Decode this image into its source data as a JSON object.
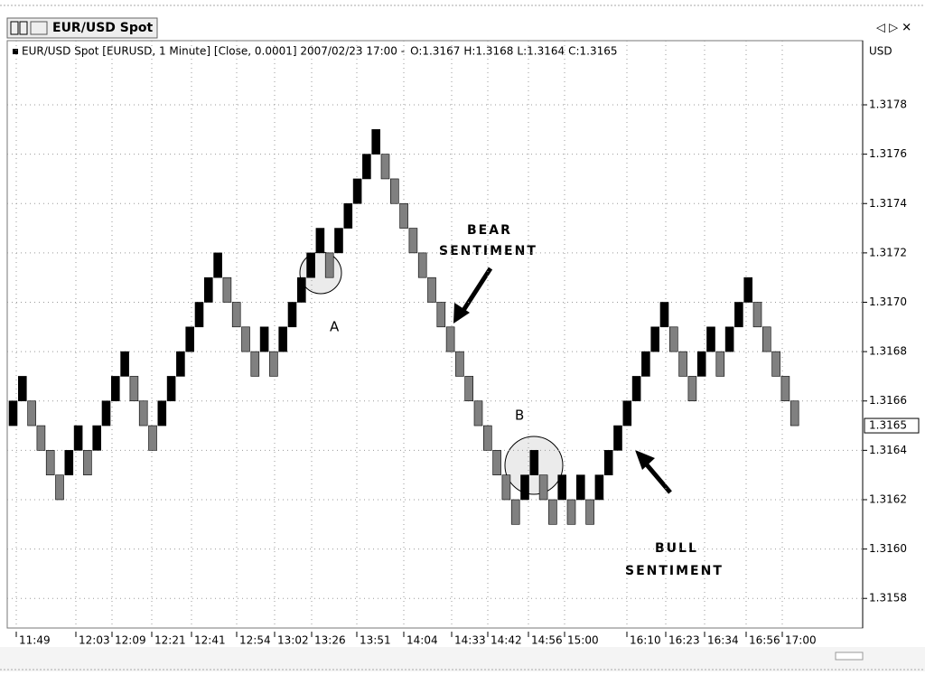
{
  "window_title": "EUR/USD Spot",
  "chart_data": {
    "type": "renko",
    "title": "EUR/USD Spot [EURUSD, 1 Minute] [Close, 0.0001] 2007/02/23 17:00 -",
    "ohlc": [
      "O:1.3167",
      "H:1.3168",
      "L:1.3164",
      "C:1.3165"
    ],
    "y_axis_label": "USD",
    "up_color": "#000000",
    "down_color": "#808080",
    "open": [
      1.3165,
      1.3166,
      1.3166,
      1.3165,
      1.3164,
      1.3163,
      1.3163,
      1.3164,
      1.3164,
      1.3164,
      1.3165,
      1.3166,
      1.3167,
      1.3167,
      1.3166,
      1.3165,
      1.3165,
      1.3166,
      1.3167,
      1.3168,
      1.3169,
      1.317,
      1.3171,
      1.3171,
      1.317,
      1.3169,
      1.3168,
      1.3168,
      1.3168,
      1.3168,
      1.3169,
      1.317,
      1.3171,
      1.3172,
      1.3172,
      1.3172,
      1.3173,
      1.3174,
      1.3175,
      1.3176,
      1.3176,
      1.3175,
      1.3174,
      1.3173,
      1.3172,
      1.3171,
      1.317,
      1.3169,
      1.3168,
      1.3167,
      1.3166,
      1.3165,
      1.3164,
      1.3163,
      1.3162,
      1.3162,
      1.3163,
      1.3163,
      1.3162,
      1.3162,
      1.3162,
      1.3162,
      1.3162,
      1.3162,
      1.3163,
      1.3164,
      1.3165,
      1.3166,
      1.3167,
      1.3168,
      1.3169,
      1.3169,
      1.3168,
      1.3167,
      1.3167,
      1.3168,
      1.3168,
      1.3168,
      1.3169,
      1.317,
      1.317,
      1.3169,
      1.3168,
      1.3167,
      1.3166
    ],
    "close": [
      1.3166,
      1.3167,
      1.3165,
      1.3164,
      1.3163,
      1.3162,
      1.3164,
      1.3165,
      1.3163,
      1.3165,
      1.3166,
      1.3167,
      1.3168,
      1.3166,
      1.3165,
      1.3164,
      1.3166,
      1.3167,
      1.3168,
      1.3169,
      1.317,
      1.3171,
      1.3172,
      1.317,
      1.3169,
      1.3168,
      1.3167,
      1.3169,
      1.3167,
      1.3169,
      1.317,
      1.3171,
      1.3172,
      1.3173,
      1.3171,
      1.3173,
      1.3174,
      1.3175,
      1.3176,
      1.3177,
      1.3175,
      1.3174,
      1.3173,
      1.3172,
      1.3171,
      1.317,
      1.3169,
      1.3168,
      1.3167,
      1.3166,
      1.3165,
      1.3164,
      1.3163,
      1.3162,
      1.3161,
      1.3163,
      1.3164,
      1.3162,
      1.3161,
      1.3163,
      1.3161,
      1.3163,
      1.3161,
      1.3163,
      1.3164,
      1.3165,
      1.3166,
      1.3167,
      1.3168,
      1.3169,
      1.317,
      1.3168,
      1.3167,
      1.3166,
      1.3168,
      1.3169,
      1.3167,
      1.3169,
      1.317,
      1.3171,
      1.3169,
      1.3168,
      1.3167,
      1.3166,
      1.3165
    ],
    "categories": [
      "11:49",
      "12:03",
      "12:09",
      "12:21",
      "12:41",
      "12:54",
      "13:02",
      "13:26",
      "13:51",
      "14:04",
      "14:33",
      "14:42",
      "14:56",
      "15:00",
      "16:10",
      "16:23",
      "16:34",
      "16:56",
      "17:00"
    ],
    "ylim": [
      1.31568,
      1.31806
    ],
    "yticks": [
      1.3158,
      {
        "value": 1.316,
        "label": "1.3160"
      },
      1.3162,
      1.3164,
      1.3166,
      1.3168,
      {
        "value": 1.317,
        "label": "1.3170"
      },
      1.3172,
      1.3174,
      1.3176,
      1.3178
    ],
    "last_price": 1.3165,
    "grid": true,
    "annotations": [
      "BEAR",
      "SENTIMENT",
      "BULL",
      "SENTIMENT",
      "A",
      "B"
    ]
  }
}
